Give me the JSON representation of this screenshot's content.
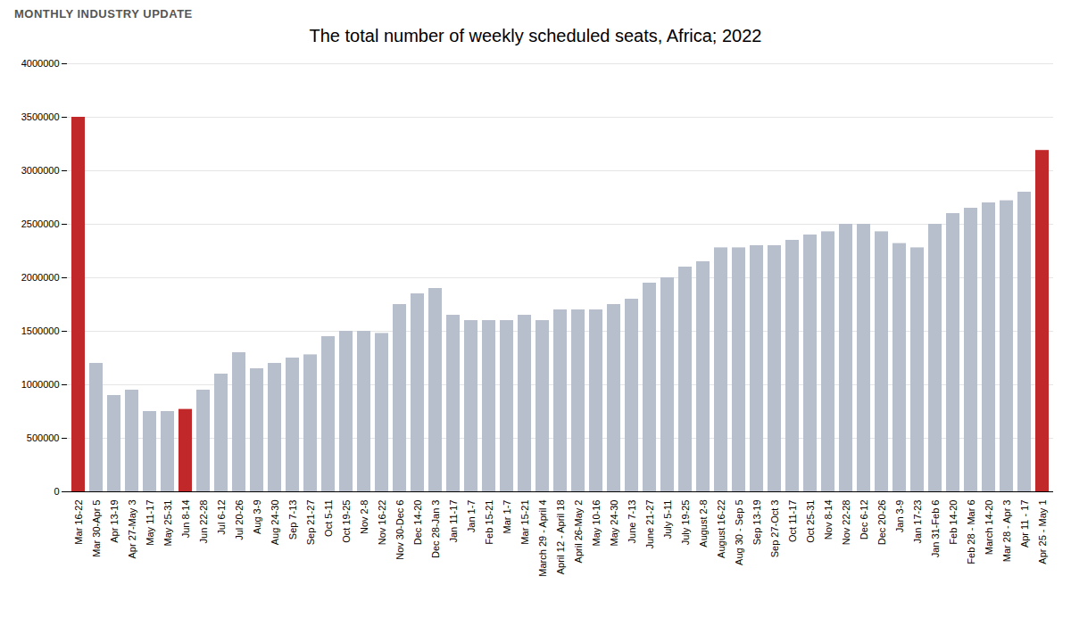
{
  "chart_data": {
    "type": "bar",
    "title": "The total number of weekly scheduled seats, Africa; 2022",
    "subtitle": "MONTHLY INDUSTRY UPDATE",
    "categories": [
      "Mar 16-22",
      "Mar 30-Apr 5",
      "Apr 13-19",
      "Apr 27-May 3",
      "May 11-17",
      "May 25-31",
      "Jun 8-14",
      "Jun 22-28",
      "Jul 6-12",
      "Jul 20-26",
      "Aug 3-9",
      "Aug 24-30",
      "Sep 7-13",
      "Sep 21-27",
      "Oct 5-11",
      "Oct 19-25",
      "Nov 2-8",
      "Nov 16-22",
      "Nov 30-Dec 6",
      "Dec 14-20",
      "Dec 28-Jan 3",
      "Jan 11-17",
      "Jan 1-7",
      "Feb 15-21",
      "Mar 1-7",
      "Mar 15-21",
      "March 29 - April 4",
      "April 12 - April 18",
      "April 26-May 2",
      "May 10-16",
      "May 24-30",
      "June 7-13",
      "June 21-27",
      "July 5-11",
      "July 19-25",
      "August 2-8",
      "August 16-22",
      "Aug 30 - Sep 5",
      "Sep 13-19",
      "Sep 27-Oct 3",
      "Oct 11-17",
      "Oct 25-31",
      "Nov 8-14",
      "Nov 22-28",
      "Dec 6-12",
      "Dec 20-26",
      "Jan 3-9",
      "Jan 17-23",
      "Jan 31-Feb 6",
      "Feb 14-20",
      "Feb 28 - Mar 6",
      "March 14-20",
      "Mar 28 - Apr 3",
      "Apr 11 - 17",
      "Apr 25 - May 1"
    ],
    "values": [
      3500000,
      1200000,
      900000,
      950000,
      750000,
      750000,
      770000,
      950000,
      1100000,
      1300000,
      1150000,
      1200000,
      1250000,
      1280000,
      1450000,
      1500000,
      1500000,
      1480000,
      1750000,
      1850000,
      1900000,
      1650000,
      1600000,
      1600000,
      1600000,
      1650000,
      1600000,
      1700000,
      1700000,
      1700000,
      1750000,
      1800000,
      1950000,
      2000000,
      2100000,
      2150000,
      2280000,
      2280000,
      2300000,
      2300000,
      2350000,
      2400000,
      2430000,
      2500000,
      2500000,
      2430000,
      2320000,
      2280000,
      2500000,
      2600000,
      2650000,
      2700000,
      2720000,
      2800000,
      3190000
    ],
    "colors": [
      "#c0282a",
      "#b8bfcc",
      "#b8bfcc",
      "#b8bfcc",
      "#b8bfcc",
      "#b8bfcc",
      "#c0282a",
      "#b8bfcc",
      "#b8bfcc",
      "#b8bfcc",
      "#b8bfcc",
      "#b8bfcc",
      "#b8bfcc",
      "#b8bfcc",
      "#b8bfcc",
      "#b8bfcc",
      "#b8bfcc",
      "#b8bfcc",
      "#b8bfcc",
      "#b8bfcc",
      "#b8bfcc",
      "#b8bfcc",
      "#b8bfcc",
      "#b8bfcc",
      "#b8bfcc",
      "#b8bfcc",
      "#b8bfcc",
      "#b8bfcc",
      "#b8bfcc",
      "#b8bfcc",
      "#b8bfcc",
      "#b8bfcc",
      "#b8bfcc",
      "#b8bfcc",
      "#b8bfcc",
      "#b8bfcc",
      "#b8bfcc",
      "#b8bfcc",
      "#b8bfcc",
      "#b8bfcc",
      "#b8bfcc",
      "#b8bfcc",
      "#b8bfcc",
      "#b8bfcc",
      "#b8bfcc",
      "#b8bfcc",
      "#b8bfcc",
      "#b8bfcc",
      "#b8bfcc",
      "#b8bfcc",
      "#b8bfcc",
      "#b8bfcc",
      "#b8bfcc",
      "#b8bfcc",
      "#c0282a"
    ],
    "ylim": [
      0,
      4000000
    ],
    "yticks": [
      0,
      500000,
      1000000,
      1500000,
      2000000,
      2500000,
      3000000,
      3500000,
      4000000
    ],
    "grid": true
  }
}
